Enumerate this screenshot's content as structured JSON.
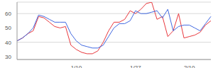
{
  "chart_data": {
    "type": "line",
    "categories": [
      null,
      null,
      null,
      null,
      null,
      null,
      null,
      null,
      null,
      null,
      null,
      "1/10",
      null,
      null,
      null,
      null,
      null,
      null,
      null,
      null,
      null,
      null,
      "1/27",
      null,
      null,
      null,
      null,
      null,
      null,
      null,
      null,
      null,
      "2/10",
      null,
      null,
      null,
      null
    ],
    "series": [
      {
        "color": "#e8383d",
        "values": [
          41,
          43,
          46,
          48,
          58,
          57,
          54,
          51,
          50,
          51,
          38,
          35,
          33,
          32,
          32,
          34,
          40,
          48,
          54,
          54,
          56,
          62,
          60,
          63,
          67,
          68,
          56,
          58,
          44,
          48,
          60,
          43,
          44,
          45,
          47,
          52,
          55
        ]
      },
      {
        "color": "#4169e1",
        "values": [
          41,
          43,
          46,
          50,
          59,
          58,
          56,
          54,
          54,
          54,
          46,
          41,
          38,
          37,
          36,
          36,
          38,
          44,
          50,
          53,
          53,
          55,
          62,
          60,
          60,
          61,
          62,
          57,
          63,
          48,
          51,
          52,
          52,
          50,
          48,
          53,
          58
        ]
      }
    ],
    "ylim": [
      28,
      68
    ],
    "yticks": [
      30,
      40,
      50,
      60
    ],
    "grid": true
  }
}
